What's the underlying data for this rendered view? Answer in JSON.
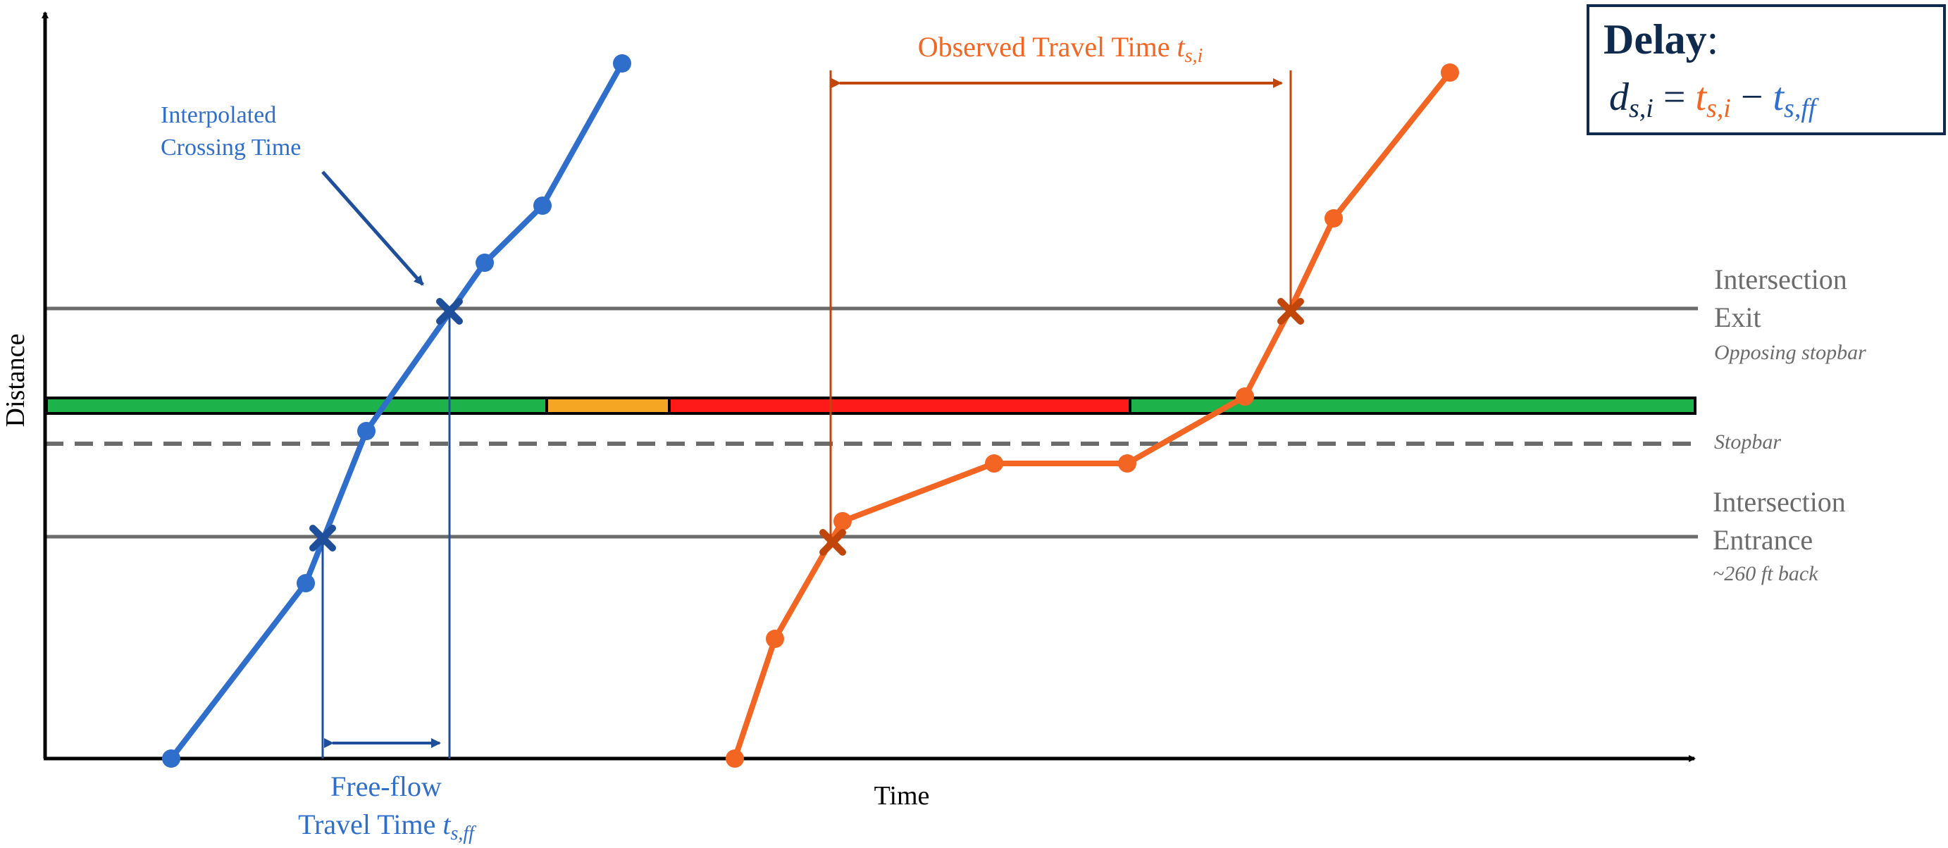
{
  "colors": {
    "blue": "#2f6fcb",
    "blue_dark": "#1f4f9a",
    "orange": "#f26522",
    "orange_dark": "#c0460c",
    "gray": "#6b6b6b",
    "navy": "#0f2a4d",
    "green": "#1db34a",
    "yellow": "#f5a623",
    "red": "#ff1a1a"
  },
  "axes": {
    "x_label": "Time",
    "y_label": "Distance"
  },
  "lines": {
    "exit_label_1": "Intersection",
    "exit_label_2": "Exit",
    "exit_note": "Opposing stopbar",
    "stopbar_label": "Stopbar",
    "entrance_label_1": "Intersection",
    "entrance_label_2": "Entrance",
    "entrance_note": "~260 ft back"
  },
  "annotations": {
    "interpolated_1": "Interpolated",
    "interpolated_2": "Crossing Time",
    "freeflow_1": "Free-flow",
    "freeflow_2": "Travel Time ",
    "freeflow_var": "t",
    "freeflow_sub": "s,ff",
    "observed": "Observed Travel Time ",
    "observed_var": "t",
    "observed_sub": "s,i"
  },
  "delay_box": {
    "title": "Delay",
    "colon": ":",
    "eq_d": "d",
    "eq_d_sub": "s,i",
    "eq_equals": " = ",
    "eq_t1": "t",
    "eq_t1_sub": "s,i",
    "eq_minus": " − ",
    "eq_t2": "t",
    "eq_t2_sub": "s,ff"
  },
  "signal_phases": [
    "green",
    "yellow",
    "red",
    "green"
  ],
  "trajectories": {
    "freeflow": "blue",
    "observed": "orange"
  }
}
